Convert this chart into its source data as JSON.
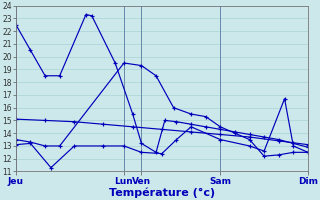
{
  "background_color": "#cce8ea",
  "grid_color": "#a8d4d8",
  "line_color": "#0000bb",
  "xlabel": "Température (°c)",
  "ylim": [
    11,
    24
  ],
  "yticks": [
    11,
    12,
    13,
    14,
    15,
    16,
    17,
    18,
    19,
    20,
    21,
    22,
    23,
    24
  ],
  "xlabel_color": "#0000bb",
  "xlabel_fontsize": 8.0,
  "tick_label_fontsize": 5.5,
  "xtick_color": "#0000bb",
  "vline_color": "#6688aa",
  "vline_positions": [
    0,
    37,
    43,
    70,
    100
  ],
  "day_labels": [
    "Jeu",
    "Lun",
    "Ven",
    "Sam",
    "Dim"
  ],
  "series": [
    {
      "x": [
        0,
        5,
        10,
        15,
        24,
        26,
        34,
        40,
        43,
        48,
        51,
        55,
        60,
        65,
        70,
        75,
        80,
        85,
        90,
        95,
        100
      ],
      "y": [
        22.5,
        20.5,
        18.5,
        18.5,
        23.3,
        23.2,
        19.5,
        15.5,
        13.2,
        12.5,
        15.0,
        14.9,
        14.7,
        14.5,
        14.3,
        14.1,
        13.9,
        13.7,
        13.5,
        13.2,
        12.9
      ]
    },
    {
      "x": [
        0,
        10,
        20,
        30,
        40,
        50,
        60,
        70,
        80,
        90,
        100
      ],
      "y": [
        15.1,
        15.0,
        14.9,
        14.7,
        14.5,
        14.3,
        14.1,
        13.9,
        13.7,
        13.4,
        13.1
      ]
    },
    {
      "x": [
        0,
        5,
        12,
        20,
        30,
        37,
        43,
        50,
        55,
        60,
        70,
        80,
        85,
        92,
        95,
        100
      ],
      "y": [
        13.1,
        13.2,
        11.3,
        13.0,
        13.0,
        13.0,
        12.5,
        12.4,
        13.5,
        14.5,
        13.5,
        13.0,
        12.6,
        16.7,
        13.0,
        12.5
      ]
    },
    {
      "x": [
        0,
        5,
        10,
        15,
        37,
        43,
        48,
        54,
        60,
        65,
        70,
        75,
        80,
        85,
        90,
        95,
        100
      ],
      "y": [
        13.5,
        13.3,
        13.0,
        13.0,
        19.5,
        19.3,
        18.5,
        16.0,
        15.5,
        15.3,
        14.5,
        14.0,
        13.5,
        12.2,
        12.3,
        12.5,
        12.5
      ]
    }
  ]
}
